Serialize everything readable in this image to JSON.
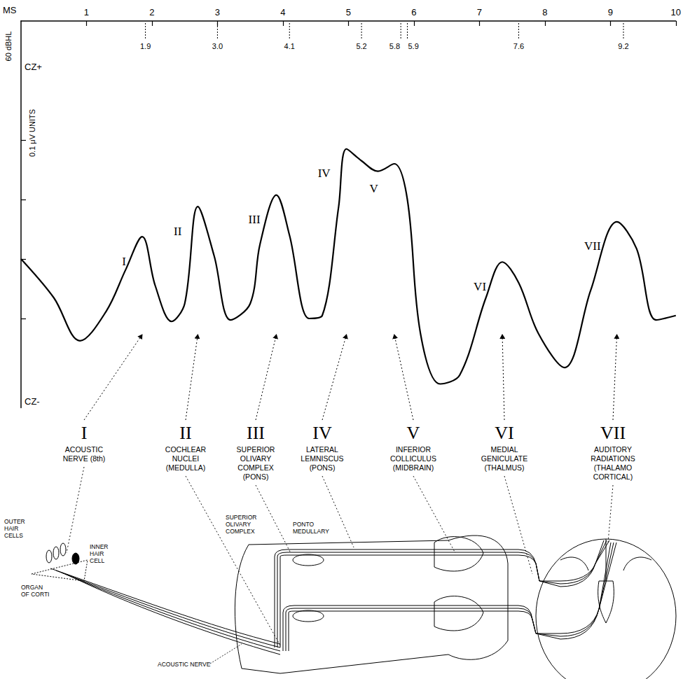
{
  "chart_data": {
    "type": "line",
    "x_label": "MS",
    "stimulus": "60 dBHL",
    "y_label": "0.1 μV UNITS",
    "y_top": "CZ+",
    "y_bottom": "CZ-",
    "x": [
      0,
      0.5,
      0.9,
      1.3,
      1.6,
      1.85,
      2.05,
      2.3,
      2.5,
      2.7,
      2.95,
      3.2,
      3.5,
      3.65,
      3.9,
      4.1,
      4.4,
      4.6,
      4.85,
      4.97,
      5.2,
      5.45,
      5.7,
      5.9,
      6.1,
      6.4,
      6.7,
      7.1,
      7.35,
      7.6,
      7.9,
      8.3,
      8.7,
      9.1,
      9.4,
      9.7,
      10
    ],
    "values": [
      0,
      -1.3,
      -2.75,
      -1.76,
      -0.35,
      0.75,
      -0.9,
      -2.1,
      -1.5,
      1.76,
      0.1,
      -2.05,
      -1.5,
      0.5,
      2.15,
      0.8,
      -2.0,
      -1.9,
      1.75,
      3.7,
      3.3,
      2.95,
      3.2,
      2.0,
      -2.5,
      -4.2,
      -3.9,
      -1.3,
      -0.1,
      -0.8,
      -2.5,
      -3.65,
      -1.05,
      1.25,
      0.35,
      -2.05,
      -1.9
    ],
    "peak_labels": [
      null,
      null,
      null,
      null,
      null,
      "I",
      null,
      null,
      null,
      "II",
      null,
      null,
      null,
      null,
      "III",
      null,
      null,
      null,
      null,
      "IV",
      null,
      null,
      "V",
      null,
      null,
      null,
      null,
      null,
      "VI",
      null,
      null,
      null,
      null,
      "VII",
      null,
      null,
      null
    ],
    "color": "#000000",
    "marker": "none",
    "line_style": "solid",
    "xlim": [
      0,
      10
    ],
    "xticks": [
      1,
      2,
      3,
      4,
      5,
      6,
      7,
      8,
      9,
      10
    ],
    "ylim": [
      -5,
      8
    ],
    "yticks": [
      -2,
      0,
      2,
      4
    ],
    "tick_labels": "x",
    "grid": false,
    "markers": [
      1.9,
      {
        "value": 3,
        "label": "3.0"
      },
      4.1,
      5.2,
      5.8,
      5.9,
      7.6,
      9.2
    ]
  },
  "stages": [
    {
      "numeral": "I",
      "lines": [
        "ACOUSTIC",
        "NERVE (8th)"
      ]
    },
    {
      "numeral": "II",
      "lines": [
        "COCHLEAR",
        "NUCLEI",
        "(MEDULLA)"
      ]
    },
    {
      "numeral": "III",
      "lines": [
        "SUPERIOR",
        "OLIVARY",
        "COMPLEX",
        "(PONS)"
      ]
    },
    {
      "numeral": "IV",
      "lines": [
        "LATERAL",
        "LEMNISCUS",
        "(PONS)"
      ]
    },
    {
      "numeral": "V",
      "lines": [
        "INFERIOR",
        "COLLICULUS",
        "(MIDBRAIN)"
      ]
    },
    {
      "numeral": "VI",
      "lines": [
        "MEDIAL",
        "GENICULATE",
        "(THALMUS)"
      ]
    },
    {
      "numeral": "VII",
      "lines": [
        "AUDITORY",
        "RADIATIONS",
        "(THALAMO",
        "CORTICAL)"
      ]
    }
  ],
  "anatomy": {
    "labels": [
      {
        "lines": [
          "OUTER",
          "HAIR",
          "CELLS"
        ]
      },
      {
        "lines": [
          "INNER",
          "HAIR",
          "CELL"
        ]
      },
      {
        "lines": [
          "ORGAN",
          "OF CORTI"
        ]
      },
      {
        "lines": [
          "ACOUSTIC NERVE"
        ]
      },
      {
        "lines": [
          "SUPERIOR",
          "OLIVARY",
          "COMPLEX"
        ]
      },
      {
        "lines": [
          "PONTO",
          "MEDULLARY"
        ]
      }
    ]
  }
}
